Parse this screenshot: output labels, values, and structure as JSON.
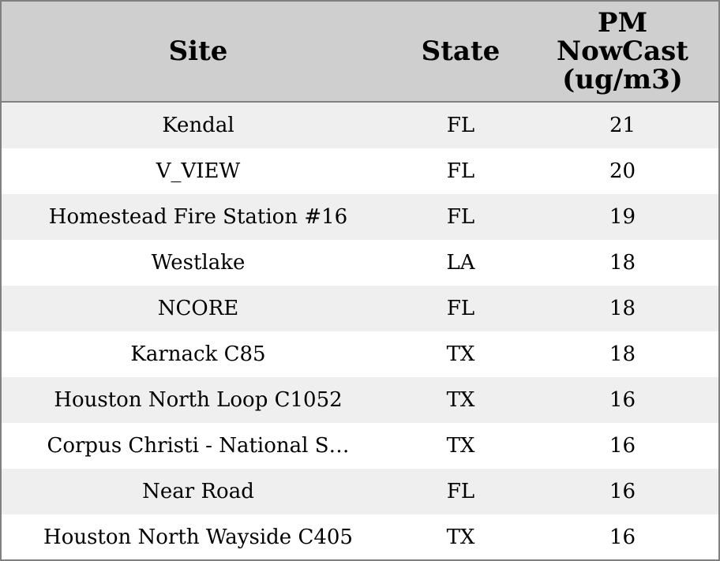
{
  "table": {
    "columns": [
      "Site",
      "State",
      "PM NowCast (ug/m3)"
    ],
    "rows": [
      [
        "Kendal",
        "FL",
        21
      ],
      [
        "V_VIEW",
        "FL",
        20
      ],
      [
        "Homestead Fire Station #16",
        "FL",
        19
      ],
      [
        "Westlake",
        "LA",
        18
      ],
      [
        "NCORE",
        "FL",
        18
      ],
      [
        "Karnack C85",
        "TX",
        18
      ],
      [
        "Houston North Loop C1052",
        "TX",
        16
      ],
      [
        "Corpus Christi - National S…",
        "TX",
        16
      ],
      [
        "Near Road",
        "FL",
        16
      ],
      [
        "Houston North Wayside C405",
        "TX",
        16
      ]
    ]
  }
}
